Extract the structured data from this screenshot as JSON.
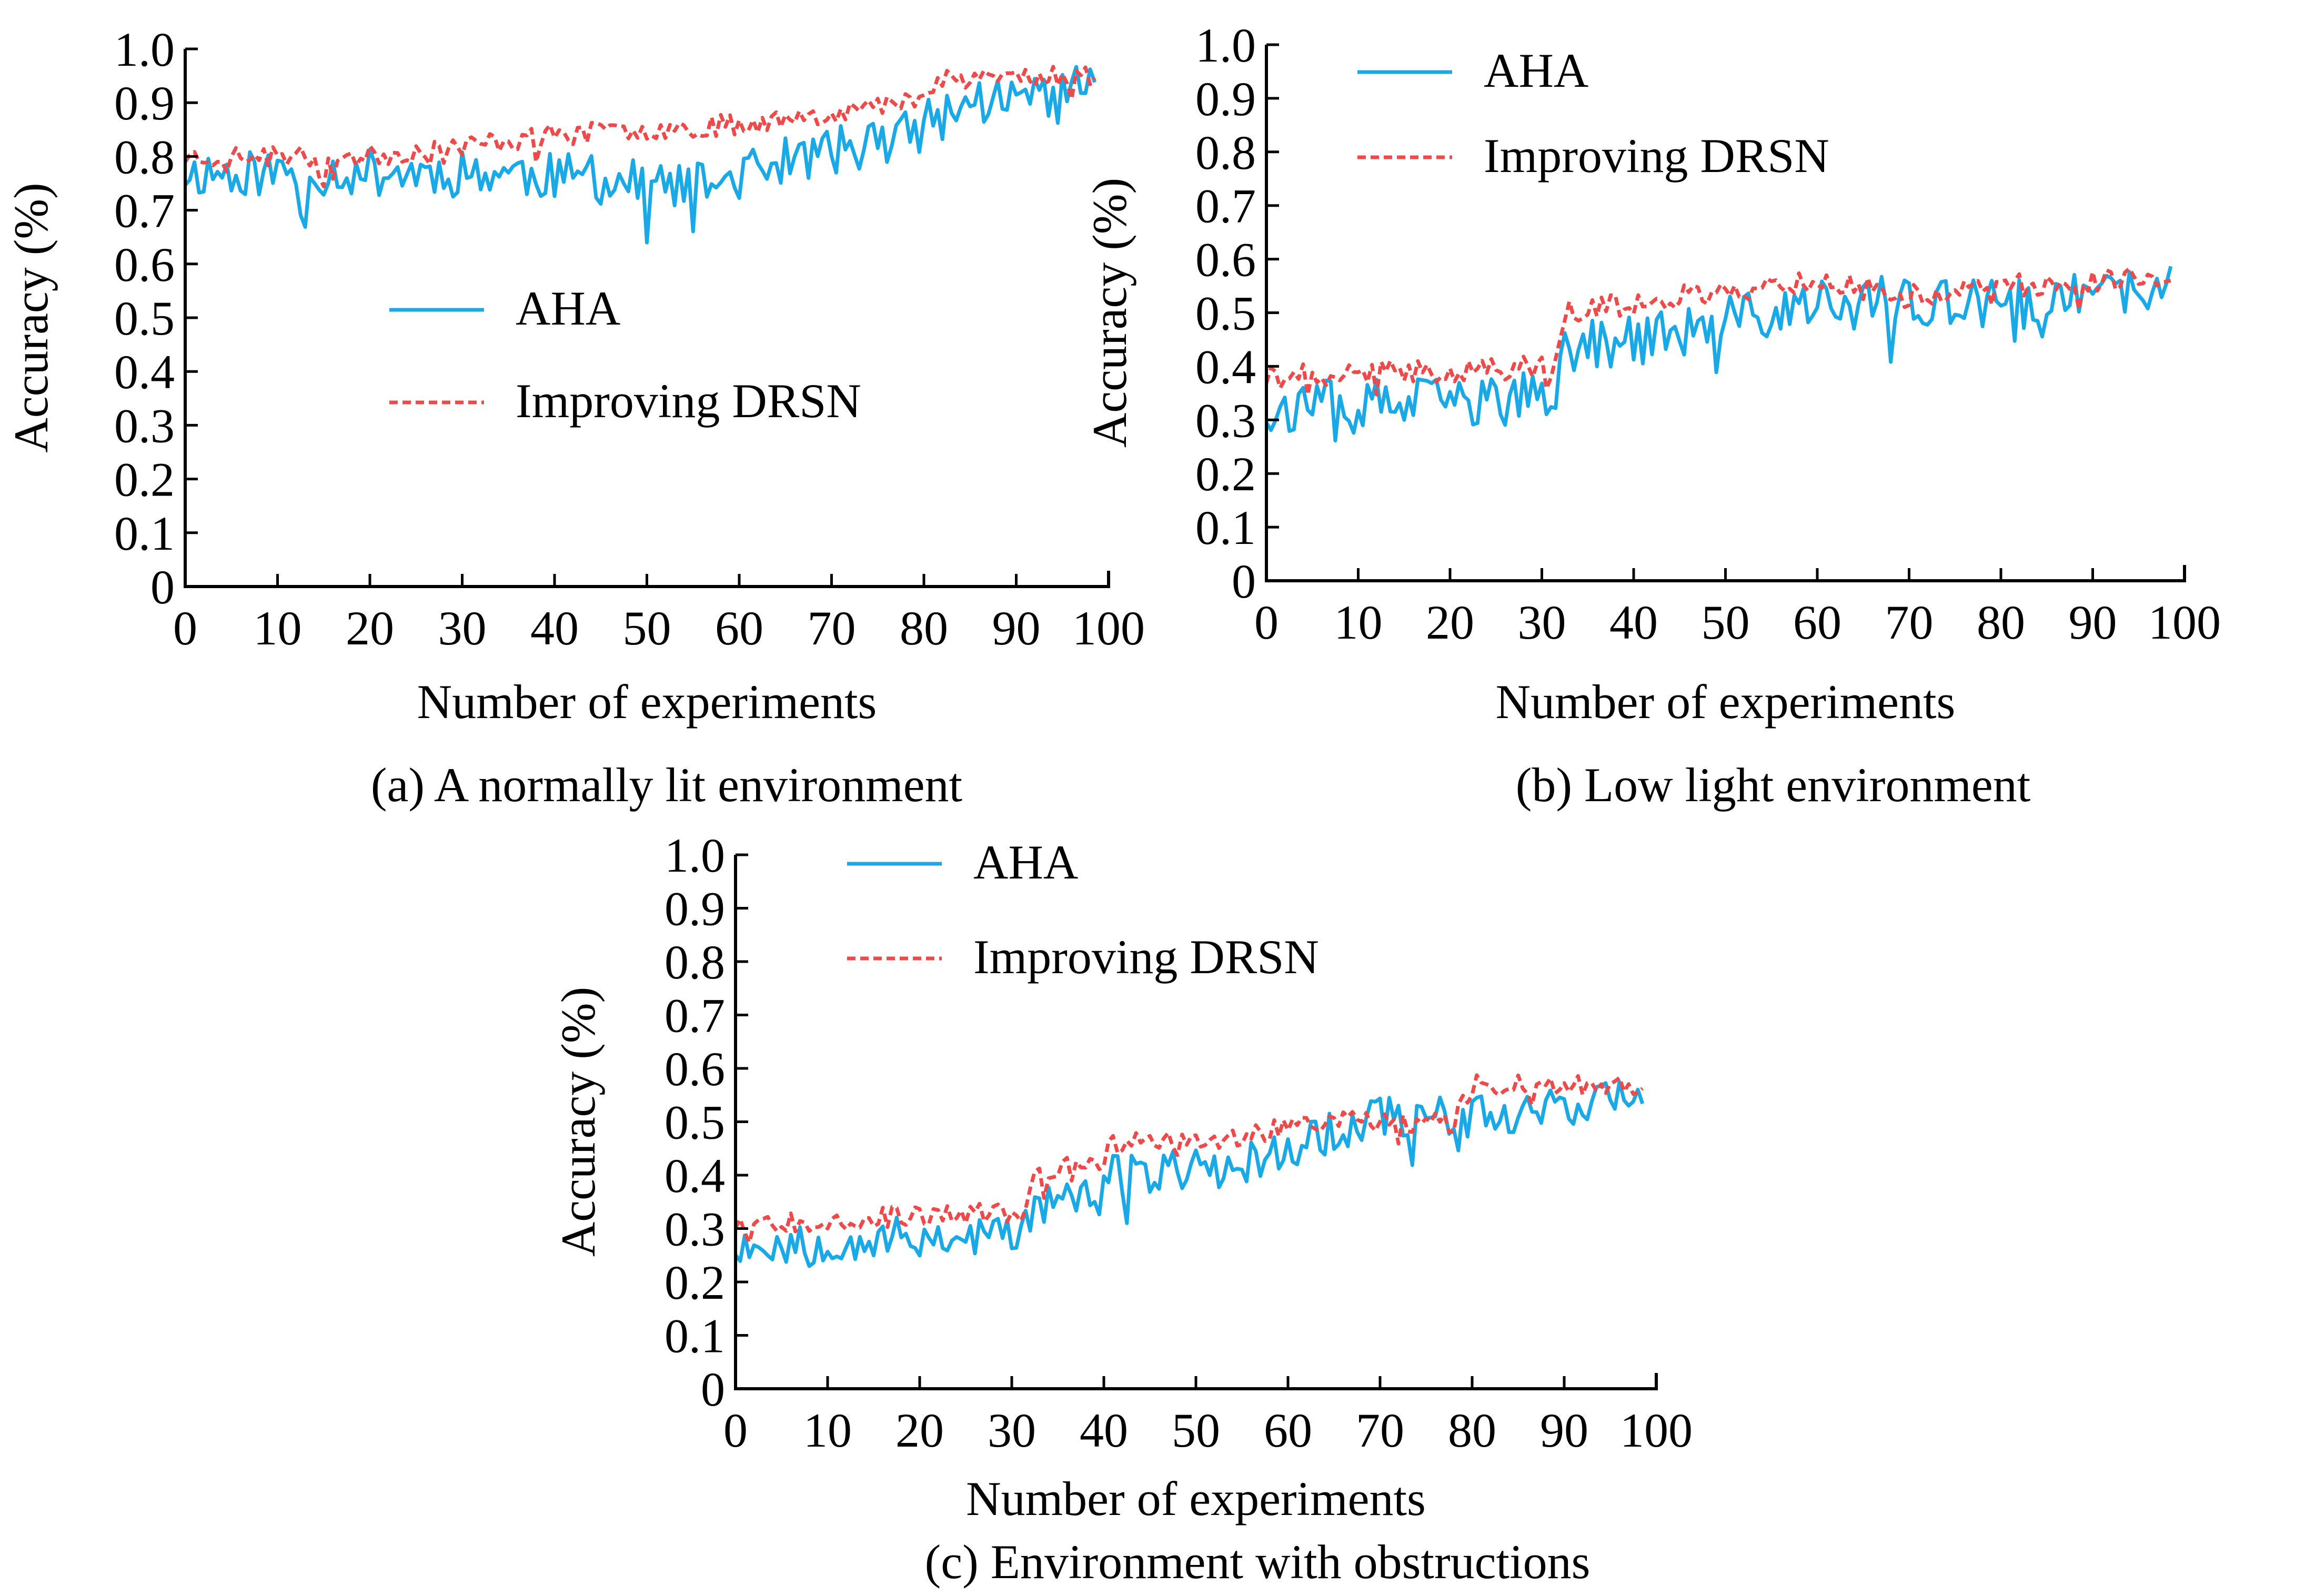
{
  "chart_data": [
    {
      "id": "a",
      "type": "line",
      "caption": "(a) A normally lit environment",
      "xlabel": "Number of experiments",
      "ylabel": "Accuracy (%)",
      "xlim": [
        0,
        100
      ],
      "ylim": [
        0,
        1.0
      ],
      "xticks": [
        "0",
        "10",
        "20",
        "30",
        "40",
        "50",
        "60",
        "70",
        "80",
        "90",
        "100"
      ],
      "yticks": [
        "0",
        "0.1",
        "0.2",
        "0.3",
        "0.4",
        "0.5",
        "0.6",
        "0.7",
        "0.8",
        "0.9",
        "1.0"
      ],
      "legend": {
        "position": "center",
        "items": [
          "AHA",
          "Improving DRSN"
        ]
      },
      "series": [
        {
          "name": "AHA",
          "color": "#19a9e6",
          "style": "solid",
          "trend": [
            [
              0,
              0.77
            ],
            [
              35,
              0.77
            ],
            [
              55,
              0.74
            ],
            [
              65,
              0.79
            ],
            [
              78,
              0.84
            ],
            [
              85,
              0.9
            ],
            [
              98,
              0.93
            ]
          ],
          "noise": 0.045,
          "seed": 11
        },
        {
          "name": "Improving DRSN",
          "color": "#ef4a4a",
          "style": "dashed",
          "trend": [
            [
              0,
              0.8
            ],
            [
              20,
              0.8
            ],
            [
              40,
              0.84
            ],
            [
              60,
              0.86
            ],
            [
              78,
              0.9
            ],
            [
              82,
              0.95
            ],
            [
              98,
              0.95
            ]
          ],
          "noise": 0.02,
          "seed": 23
        }
      ]
    },
    {
      "id": "b",
      "type": "line",
      "caption": "(b) Low light environment",
      "xlabel": "Number of experiments",
      "ylabel": "Accuracy (%)",
      "xlim": [
        0,
        100
      ],
      "ylim": [
        0,
        1.0
      ],
      "xticks": [
        "0",
        "10",
        "20",
        "30",
        "40",
        "50",
        "60",
        "70",
        "80",
        "90",
        "100"
      ],
      "yticks": [
        "0",
        "0.1",
        "0.2",
        "0.3",
        "0.4",
        "0.5",
        "0.6",
        "0.7",
        "0.8",
        "0.9",
        "1.0"
      ],
      "legend": {
        "position": "top",
        "items": [
          "AHA",
          "Improving DRSN"
        ]
      },
      "series": [
        {
          "name": "AHA",
          "color": "#19a9e6",
          "style": "solid",
          "trend": [
            [
              0,
              0.32
            ],
            [
              31,
              0.34
            ],
            [
              33,
              0.44
            ],
            [
              45,
              0.46
            ],
            [
              55,
              0.5
            ],
            [
              65,
              0.52
            ],
            [
              80,
              0.51
            ],
            [
              98,
              0.54
            ]
          ],
          "noise": 0.05,
          "seed": 37
        },
        {
          "name": "Improving DRSN",
          "color": "#ef4a4a",
          "style": "dashed",
          "trend": [
            [
              0,
              0.38
            ],
            [
              31,
              0.4
            ],
            [
              33,
              0.5
            ],
            [
              45,
              0.53
            ],
            [
              60,
              0.56
            ],
            [
              70,
              0.53
            ],
            [
              80,
              0.55
            ],
            [
              98,
              0.57
            ]
          ],
          "noise": 0.022,
          "seed": 41
        }
      ]
    },
    {
      "id": "c",
      "type": "line",
      "caption": "(c) Environment with obstructions",
      "xlabel": "Number of experiments",
      "ylabel": "Accuracy (%)",
      "xlim": [
        0,
        100
      ],
      "ylim": [
        0,
        1.0
      ],
      "xticks": [
        "0",
        "10",
        "20",
        "30",
        "40",
        "50",
        "60",
        "70",
        "80",
        "90",
        "100"
      ],
      "yticks": [
        "0",
        "0.1",
        "0.2",
        "0.3",
        "0.4",
        "0.5",
        "0.6",
        "0.7",
        "0.8",
        "0.9",
        "1.0"
      ],
      "legend": {
        "position": "top",
        "items": [
          "AHA",
          "Improving DRSN"
        ]
      },
      "series": [
        {
          "name": "AHA",
          "color": "#19a9e6",
          "style": "solid",
          "trend": [
            [
              0,
              0.27
            ],
            [
              31,
              0.29
            ],
            [
              33,
              0.35
            ],
            [
              40,
              0.36
            ],
            [
              41,
              0.4
            ],
            [
              55,
              0.42
            ],
            [
              63,
              0.47
            ],
            [
              70,
              0.51
            ],
            [
              80,
              0.51
            ],
            [
              98,
              0.55
            ]
          ],
          "noise": 0.04,
          "seed": 53
        },
        {
          "name": "Improving DRSN",
          "color": "#ef4a4a",
          "style": "dashed",
          "trend": [
            [
              0,
              0.31
            ],
            [
              31,
              0.33
            ],
            [
              33,
              0.41
            ],
            [
              40,
              0.43
            ],
            [
              41,
              0.46
            ],
            [
              55,
              0.47
            ],
            [
              63,
              0.5
            ],
            [
              70,
              0.5
            ],
            [
              78,
              0.5
            ],
            [
              80,
              0.57
            ],
            [
              98,
              0.57
            ]
          ],
          "noise": 0.02,
          "seed": 67
        }
      ]
    }
  ]
}
